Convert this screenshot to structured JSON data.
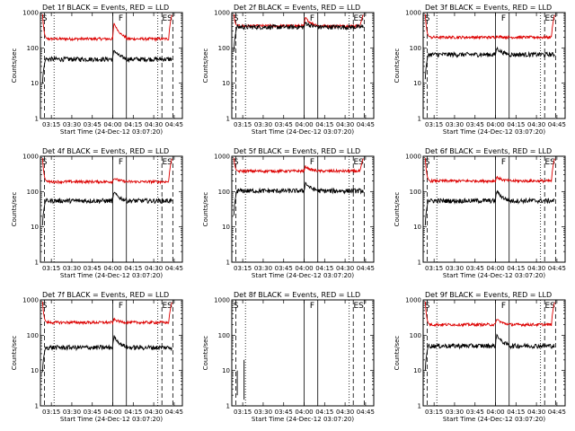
{
  "chart_data": {
    "type": "line",
    "layout": "3x3 grid",
    "ylabel": "Counts/sec",
    "xlabel": "Start Time (24-Dec-12 03:07:20)",
    "yscale": "log",
    "ylim": [
      1,
      1000
    ],
    "y_ticks": [
      {
        "value": 1,
        "label": "1"
      },
      {
        "value": 10,
        "label": "10"
      },
      {
        "value": 100,
        "label": "100"
      },
      {
        "value": 1000,
        "label": "1000"
      }
    ],
    "xlim_minutes": [
      0,
      104
    ],
    "x_ticks": [
      {
        "value": 8,
        "label": "03:15"
      },
      {
        "value": 23,
        "label": "03:30"
      },
      {
        "value": 38,
        "label": "03:45"
      },
      {
        "value": 53,
        "label": "04:00"
      },
      {
        "value": 68,
        "label": "04:15"
      },
      {
        "value": 83,
        "label": "04:30"
      },
      {
        "value": 98,
        "label": "04:45"
      }
    ],
    "series_colors": {
      "events": "#000000",
      "lld": "#dd0000"
    },
    "markers": [
      {
        "label": "S",
        "x": 0.5
      },
      {
        "label": "F",
        "x": 56.5
      },
      {
        "label": "ES",
        "x": 88.5
      }
    ],
    "vlines": [
      {
        "x": 3,
        "style": "dashed"
      },
      {
        "x": 10,
        "style": "dotted"
      },
      {
        "x": 53,
        "style": "solid"
      },
      {
        "x": 63,
        "style": "solid"
      },
      {
        "x": 86,
        "style": "dotted"
      },
      {
        "x": 89,
        "style": "dashed"
      },
      {
        "x": 97,
        "style": "dashed"
      }
    ],
    "panels": [
      {
        "title": "Det 1f BLACK = Events, RED = LLD",
        "lld_level": 180,
        "events_level": 48,
        "lld_peak": 600,
        "events_peak": 100,
        "lld_tail": 900
      },
      {
        "title": "Det 2f BLACK = Events, RED = LLD",
        "lld_level": 420,
        "events_level": 390,
        "lld_peak": 820,
        "events_peak": 560,
        "lld_tail": 900
      },
      {
        "title": "Det 3f BLACK = Events, RED = LLD",
        "lld_level": 200,
        "events_level": 65,
        "lld_peak": 220,
        "events_peak": 110,
        "lld_tail": 900
      },
      {
        "title": "Det 4f BLACK = Events, RED = LLD",
        "lld_level": 190,
        "events_level": 55,
        "lld_peak": 260,
        "events_peak": 110,
        "lld_tail": 900
      },
      {
        "title": "Det 5f BLACK = Events, RED = LLD",
        "lld_level": 380,
        "events_level": 105,
        "lld_peak": 560,
        "events_peak": 200,
        "lld_tail": 900
      },
      {
        "title": "Det 6f BLACK = Events, RED = LLD",
        "lld_level": 200,
        "events_level": 55,
        "lld_peak": 280,
        "events_peak": 120,
        "lld_tail": 900
      },
      {
        "title": "Det 7f BLACK = Events, RED = LLD",
        "lld_level": 230,
        "events_level": 45,
        "lld_peak": 300,
        "events_peak": 110,
        "lld_tail": 900
      },
      {
        "title": "Det 8f BLACK = Events, RED = LLD",
        "lld_level": null,
        "events_level": null,
        "lld_peak": null,
        "events_peak": null,
        "lld_tail": null
      },
      {
        "title": "Det 9f BLACK = Events, RED = LLD",
        "lld_level": 200,
        "events_level": 50,
        "lld_peak": 320,
        "events_peak": 120,
        "lld_tail": 900
      }
    ]
  }
}
